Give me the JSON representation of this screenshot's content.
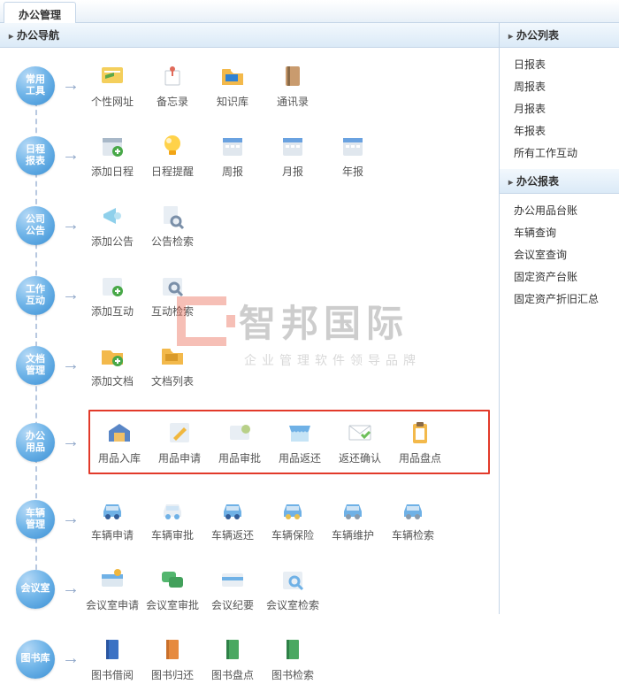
{
  "tab": "办公管理",
  "leftHeader": "办公导航",
  "rightPanels": [
    {
      "title": "办公列表",
      "items": [
        "日报表",
        "周报表",
        "月报表",
        "年报表",
        "所有工作互动"
      ]
    },
    {
      "title": "办公报表",
      "items": [
        "办公用品台账",
        "车辆查询",
        "会议室查询",
        "固定资产台账",
        "固定资产折旧汇总"
      ]
    }
  ],
  "rows": [
    {
      "bubble": "常用\n工具",
      "highlighted": false,
      "items": [
        {
          "label": "个性网址",
          "icon": "web-icon",
          "colors": [
            "#f4cf5c",
            "#ffffff"
          ]
        },
        {
          "label": "备忘录",
          "icon": "pin-icon",
          "colors": [
            "#e06a5a",
            "#ffffff"
          ]
        },
        {
          "label": "知识库",
          "icon": "folder-icon",
          "colors": [
            "#f3b94b",
            "#2f82d5"
          ]
        },
        {
          "label": "通讯录",
          "icon": "book-icon",
          "colors": [
            "#c99b6e",
            "#8a6a47"
          ]
        }
      ]
    },
    {
      "bubble": "日程\n报表",
      "highlighted": false,
      "items": [
        {
          "label": "添加日程",
          "icon": "cal-plus-icon",
          "colors": [
            "#e0e7ee",
            "#48a848"
          ]
        },
        {
          "label": "日程提醒",
          "icon": "bulb-icon",
          "colors": [
            "#ffd24a",
            "#f2a516"
          ]
        },
        {
          "label": "周报",
          "icon": "cal-icon",
          "colors": [
            "#e0e7ee",
            "#6aa2e0"
          ]
        },
        {
          "label": "月报",
          "icon": "cal-icon",
          "colors": [
            "#e0e7ee",
            "#6aa2e0"
          ]
        },
        {
          "label": "年报",
          "icon": "cal-icon",
          "colors": [
            "#e0e7ee",
            "#6aa2e0"
          ]
        }
      ]
    },
    {
      "bubble": "公司\n公告",
      "highlighted": false,
      "items": [
        {
          "label": "添加公告",
          "icon": "horn-icon",
          "colors": [
            "#8fd0eb",
            "#b9e2f2"
          ]
        },
        {
          "label": "公告检索",
          "icon": "search-doc-icon",
          "colors": [
            "#e8eef4",
            "#7a8fa8"
          ]
        }
      ]
    },
    {
      "bubble": "工作\n互动",
      "highlighted": false,
      "items": [
        {
          "label": "添加互动",
          "icon": "add-icon",
          "colors": [
            "#e8eef4",
            "#48a848"
          ]
        },
        {
          "label": "互动检索",
          "icon": "search-icon",
          "colors": [
            "#e8eef4",
            "#7a8fa8"
          ]
        }
      ]
    },
    {
      "bubble": "文档\n管理",
      "highlighted": false,
      "items": [
        {
          "label": "添加文档",
          "icon": "folder-plus-icon",
          "colors": [
            "#f3b94b",
            "#48a848"
          ]
        },
        {
          "label": "文档列表",
          "icon": "folder-icon",
          "colors": [
            "#f3b94b",
            "#d99a2a"
          ]
        }
      ]
    },
    {
      "bubble": "办公\n用品",
      "highlighted": true,
      "items": [
        {
          "label": "用品入库",
          "icon": "warehouse-icon",
          "colors": [
            "#5986c6",
            "#f0c066"
          ]
        },
        {
          "label": "用品申请",
          "icon": "apply-icon",
          "colors": [
            "#e8eef4",
            "#f0b73e"
          ]
        },
        {
          "label": "用品审批",
          "icon": "approve-icon",
          "colors": [
            "#b8d088",
            "#e8eef4"
          ]
        },
        {
          "label": "用品返还",
          "icon": "shop-icon",
          "colors": [
            "#6fb1e6",
            "#c6e4f6"
          ]
        },
        {
          "label": "返还确认",
          "icon": "mail-check-icon",
          "colors": [
            "#ffffff",
            "#6dbf5a"
          ]
        },
        {
          "label": "用品盘点",
          "icon": "clipboard-icon",
          "colors": [
            "#f3b94b",
            "#ffffff"
          ]
        }
      ]
    },
    {
      "bubble": "车辆\n管理",
      "highlighted": false,
      "items": [
        {
          "label": "车辆申请",
          "icon": "car-icon",
          "colors": [
            "#6fb1e6",
            "#345e99"
          ]
        },
        {
          "label": "车辆审批",
          "icon": "car-doc-icon",
          "colors": [
            "#e8eef4",
            "#6fb1e6"
          ]
        },
        {
          "label": "车辆返还",
          "icon": "car-return-icon",
          "colors": [
            "#6fb1e6",
            "#345e99"
          ]
        },
        {
          "label": "车辆保险",
          "icon": "car-shield-icon",
          "colors": [
            "#6fb1e6",
            "#e8c050"
          ]
        },
        {
          "label": "车辆维护",
          "icon": "car-wrench-icon",
          "colors": [
            "#6fb1e6",
            "#8a9aab"
          ]
        },
        {
          "label": "车辆检索",
          "icon": "car-search-icon",
          "colors": [
            "#6fb1e6",
            "#8a9aab"
          ]
        }
      ]
    },
    {
      "bubble": "会议室",
      "highlighted": false,
      "items": [
        {
          "label": "会议室申请",
          "icon": "meeting-icon",
          "colors": [
            "#6fb1e6",
            "#dce7f0"
          ]
        },
        {
          "label": "会议室审批",
          "icon": "chat-icon",
          "colors": [
            "#53b66e",
            "#42a05b"
          ]
        },
        {
          "label": "会议纪要",
          "icon": "card-icon",
          "colors": [
            "#e8eef4",
            "#6fb1e6"
          ]
        },
        {
          "label": "会议室检索",
          "icon": "search-icon",
          "colors": [
            "#e8eef4",
            "#6fb1e6"
          ]
        }
      ]
    },
    {
      "bubble": "图书库",
      "highlighted": false,
      "items": [
        {
          "label": "图书借阅",
          "icon": "book2-icon",
          "colors": [
            "#3b72c4",
            "#2a55a0"
          ]
        },
        {
          "label": "图书归还",
          "icon": "book2-icon",
          "colors": [
            "#e68a3e",
            "#c96f2a"
          ]
        },
        {
          "label": "图书盘点",
          "icon": "book2-icon",
          "colors": [
            "#4aa861",
            "#2e8047"
          ]
        },
        {
          "label": "图书检索",
          "icon": "book2-icon",
          "colors": [
            "#4aa861",
            "#2e8047"
          ]
        }
      ]
    }
  ],
  "watermark": {
    "big": "智邦国际",
    "small": "企业管理软件领导品牌"
  }
}
